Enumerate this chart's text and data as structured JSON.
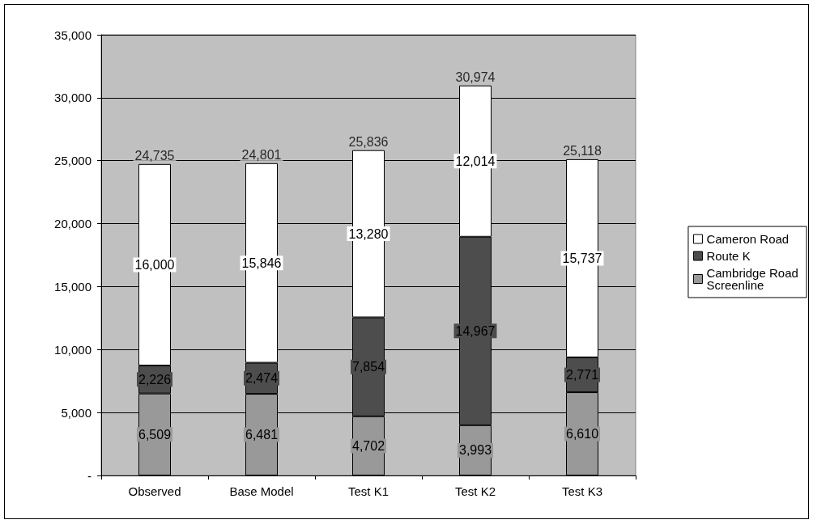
{
  "chart_data": {
    "type": "bar",
    "stacked": true,
    "categories": [
      "Observed",
      "Base Model",
      "Test K1",
      "Test K2",
      "Test K3"
    ],
    "series": [
      {
        "name": "Cambridge Road Screenline",
        "color": "#999999",
        "values": [
          6509,
          6481,
          4702,
          3993,
          6610
        ],
        "value_labels": [
          "6,509",
          "6,481",
          "4,702",
          "3,993",
          "6,610"
        ]
      },
      {
        "name": "Route K",
        "color": "#4d4d4d",
        "values": [
          2226,
          2474,
          7854,
          14967,
          2771
        ],
        "value_labels": [
          "2,226",
          "2,474",
          "7,854",
          "14,967",
          "2,771"
        ]
      },
      {
        "name": "Cameron Road",
        "color": "#ffffff",
        "values": [
          16000,
          15846,
          13280,
          12014,
          15737
        ],
        "value_labels": [
          "16,000",
          "15,846",
          "13,280",
          "12,014",
          "15,737"
        ]
      }
    ],
    "totals": [
      "24,735",
      "24,801",
      "25,836",
      "30,974",
      "25,118"
    ],
    "ylim": [
      0,
      35000
    ],
    "yticks": [
      {
        "value": 0,
        "label": "-"
      },
      {
        "value": 5000,
        "label": "5,000"
      },
      {
        "value": 10000,
        "label": "10,000"
      },
      {
        "value": 15000,
        "label": "15,000"
      },
      {
        "value": 20000,
        "label": "20,000"
      },
      {
        "value": 25000,
        "label": "25,000"
      },
      {
        "value": 30000,
        "label": "30,000"
      },
      {
        "value": 35000,
        "label": "35,000"
      }
    ],
    "grid": "y",
    "legend": "right"
  }
}
